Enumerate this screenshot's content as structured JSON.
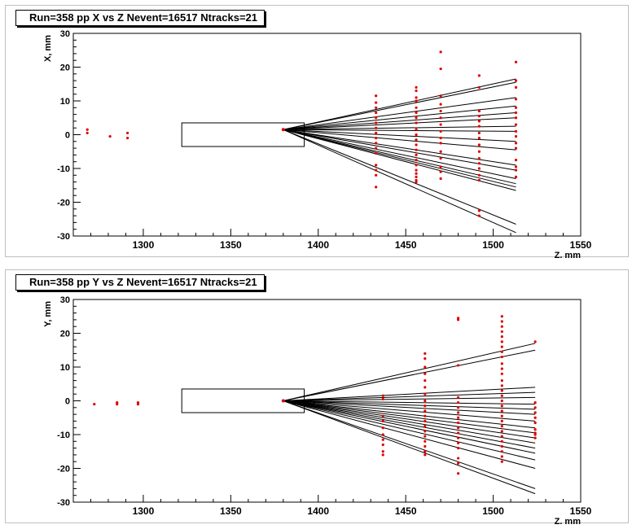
{
  "panels": [
    {
      "title": "Run=358 pp X vs Z Nevent=16517 Ntracks=21",
      "xlabel": "Z, mm",
      "ylabel": "X, mm"
    },
    {
      "title": "Run=358 pp Y vs Z Nevent=16517 Ntracks=21",
      "xlabel": "Z, mm",
      "ylabel": "Y, mm"
    }
  ],
  "colors": {
    "hits": "#e00000",
    "tracks": "#000000",
    "frame": "#000000"
  },
  "chart_data": [
    {
      "type": "scatter",
      "title": "Run=358 pp X vs Z Nevent=16517 Ntracks=21",
      "xlabel": "Z, mm",
      "ylabel": "X, mm",
      "xlim": [
        1260,
        1550
      ],
      "ylim": [
        -30,
        30
      ],
      "x_ticks": [
        1300,
        1350,
        1400,
        1450,
        1500,
        1550
      ],
      "y_ticks": [
        -30,
        -20,
        -10,
        0,
        10,
        20,
        30
      ],
      "grid": false,
      "box": {
        "z": [
          1322,
          1392
        ],
        "x": [
          -3.5,
          3.5
        ]
      },
      "vertex": {
        "z": 1380,
        "x": 1.5
      },
      "track_end_z": 1513,
      "track_end_values": [
        16.5,
        15.5,
        11,
        8.5,
        6.5,
        5,
        2.5,
        1,
        -2,
        -4.5,
        -9,
        -10.5,
        -13,
        -14.5,
        -15.5,
        -16.5,
        -26.5,
        -29
      ],
      "hit_planes_z": [
        1433,
        1456,
        1470,
        1492,
        1513
      ],
      "hits": [
        [
          1268,
          1.5
        ],
        [
          1268,
          0.5
        ],
        [
          1281,
          -0.5
        ],
        [
          1291,
          0.5
        ],
        [
          1291,
          -1
        ],
        [
          1433,
          11.5
        ],
        [
          1433,
          9.5
        ],
        [
          1433,
          8
        ],
        [
          1433,
          6.5
        ],
        [
          1433,
          5
        ],
        [
          1433,
          3.5
        ],
        [
          1433,
          2
        ],
        [
          1433,
          0.5
        ],
        [
          1433,
          -1
        ],
        [
          1433,
          -2.5
        ],
        [
          1433,
          -4
        ],
        [
          1433,
          -5.5
        ],
        [
          1433,
          -9
        ],
        [
          1433,
          -10.5
        ],
        [
          1433,
          -12
        ],
        [
          1433,
          -15.5
        ],
        [
          1456,
          14
        ],
        [
          1456,
          13
        ],
        [
          1456,
          11
        ],
        [
          1456,
          10
        ],
        [
          1456,
          8
        ],
        [
          1456,
          6.5
        ],
        [
          1456,
          5
        ],
        [
          1456,
          3.5
        ],
        [
          1456,
          1.5
        ],
        [
          1456,
          0
        ],
        [
          1456,
          -1.5
        ],
        [
          1456,
          -3
        ],
        [
          1456,
          -4.5
        ],
        [
          1456,
          -6
        ],
        [
          1456,
          -7.5
        ],
        [
          1456,
          -9
        ],
        [
          1456,
          -10.5
        ],
        [
          1456,
          -11.5
        ],
        [
          1456,
          -12.5
        ],
        [
          1456,
          -13.5
        ],
        [
          1456,
          -14
        ],
        [
          1470,
          24.5
        ],
        [
          1470,
          19.5
        ],
        [
          1470,
          11.5
        ],
        [
          1470,
          9
        ],
        [
          1470,
          7
        ],
        [
          1470,
          5
        ],
        [
          1470,
          3
        ],
        [
          1470,
          1
        ],
        [
          1470,
          -1
        ],
        [
          1470,
          -2.5
        ],
        [
          1470,
          -5
        ],
        [
          1470,
          -7
        ],
        [
          1470,
          -9.5
        ],
        [
          1470,
          -11
        ],
        [
          1470,
          -13
        ],
        [
          1492,
          17.5
        ],
        [
          1492,
          14
        ],
        [
          1492,
          7
        ],
        [
          1492,
          5.5
        ],
        [
          1492,
          4
        ],
        [
          1492,
          2.5
        ],
        [
          1492,
          0.5
        ],
        [
          1492,
          -1
        ],
        [
          1492,
          -3
        ],
        [
          1492,
          -5
        ],
        [
          1492,
          -7
        ],
        [
          1492,
          -8.5
        ],
        [
          1492,
          -10
        ],
        [
          1492,
          -12
        ],
        [
          1492,
          -13.5
        ],
        [
          1492,
          -22.5
        ],
        [
          1492,
          -24
        ],
        [
          1513,
          21.5
        ],
        [
          1513,
          16
        ],
        [
          1513,
          14
        ],
        [
          1513,
          10.5
        ],
        [
          1513,
          8
        ],
        [
          1513,
          6.5
        ],
        [
          1513,
          5
        ],
        [
          1513,
          3
        ],
        [
          1513,
          1
        ],
        [
          1513,
          -0.5
        ],
        [
          1513,
          -2.5
        ],
        [
          1513,
          -4
        ],
        [
          1513,
          -7.5
        ],
        [
          1513,
          -9.5
        ],
        [
          1513,
          -10.5
        ],
        [
          1513,
          -12.5
        ]
      ]
    },
    {
      "type": "scatter",
      "title": "Run=358 pp Y vs Z Nevent=16517 Ntracks=21",
      "xlabel": "Z, mm",
      "ylabel": "Y, mm",
      "xlim": [
        1260,
        1550
      ],
      "ylim": [
        -30,
        30
      ],
      "x_ticks": [
        1300,
        1350,
        1400,
        1450,
        1500,
        1550
      ],
      "y_ticks": [
        -30,
        -20,
        -10,
        0,
        10,
        20,
        30
      ],
      "grid": false,
      "box": {
        "z": [
          1322,
          1392
        ],
        "y": [
          -3.5,
          3.5
        ]
      },
      "vertex": {
        "z": 1380,
        "y": 0
      },
      "track_end_z": 1524,
      "track_end_values": [
        17,
        15,
        4,
        2.5,
        1,
        -1,
        -2.5,
        -4,
        -6,
        -8,
        -9.5,
        -11,
        -12.5,
        -14,
        -15.5,
        -17.5,
        -20,
        -26,
        -27.5
      ],
      "hit_planes_z": [
        1437,
        1461,
        1480,
        1505,
        1524
      ],
      "hits": [
        [
          1272,
          -1
        ],
        [
          1285,
          -0.5
        ],
        [
          1285,
          -1
        ],
        [
          1297,
          -1
        ],
        [
          1297,
          -0.5
        ],
        [
          1437,
          1.5
        ],
        [
          1437,
          0.5
        ],
        [
          1437,
          -4.5
        ],
        [
          1437,
          -6
        ],
        [
          1437,
          -8
        ],
        [
          1437,
          -10
        ],
        [
          1437,
          -11.5
        ],
        [
          1437,
          -13
        ],
        [
          1437,
          -15
        ],
        [
          1437,
          -16
        ],
        [
          1461,
          14
        ],
        [
          1461,
          12.5
        ],
        [
          1461,
          10
        ],
        [
          1461,
          8
        ],
        [
          1461,
          6
        ],
        [
          1461,
          4
        ],
        [
          1461,
          2
        ],
        [
          1461,
          0
        ],
        [
          1461,
          -1.5
        ],
        [
          1461,
          -3
        ],
        [
          1461,
          -4.5
        ],
        [
          1461,
          -6
        ],
        [
          1461,
          -7.5
        ],
        [
          1461,
          -9
        ],
        [
          1461,
          -10.5
        ],
        [
          1461,
          -12
        ],
        [
          1461,
          -13.5
        ],
        [
          1461,
          -15
        ],
        [
          1461,
          -16
        ],
        [
          1480,
          24.5
        ],
        [
          1480,
          24
        ],
        [
          1480,
          10.5
        ],
        [
          1480,
          1
        ],
        [
          1480,
          -0.5
        ],
        [
          1480,
          -2
        ],
        [
          1480,
          -3.5
        ],
        [
          1480,
          -5
        ],
        [
          1480,
          -6.5
        ],
        [
          1480,
          -8
        ],
        [
          1480,
          -9.5
        ],
        [
          1480,
          -11
        ],
        [
          1480,
          -12.5
        ],
        [
          1480,
          -14
        ],
        [
          1480,
          -17
        ],
        [
          1480,
          -18.5
        ],
        [
          1480,
          -21.5
        ],
        [
          1505,
          25
        ],
        [
          1505,
          23.5
        ],
        [
          1505,
          22
        ],
        [
          1505,
          20.5
        ],
        [
          1505,
          19
        ],
        [
          1505,
          17.5
        ],
        [
          1505,
          16
        ],
        [
          1505,
          14.5
        ],
        [
          1505,
          13
        ],
        [
          1505,
          11
        ],
        [
          1505,
          9.5
        ],
        [
          1505,
          8
        ],
        [
          1505,
          6
        ],
        [
          1505,
          4.5
        ],
        [
          1505,
          3
        ],
        [
          1505,
          1.5
        ],
        [
          1505,
          0
        ],
        [
          1505,
          -1.5
        ],
        [
          1505,
          -3
        ],
        [
          1505,
          -4.5
        ],
        [
          1505,
          -6
        ],
        [
          1505,
          -7.5
        ],
        [
          1505,
          -9
        ],
        [
          1505,
          -10.5
        ],
        [
          1505,
          -12
        ],
        [
          1505,
          -13.5
        ],
        [
          1505,
          -15
        ],
        [
          1505,
          -16.5
        ],
        [
          1505,
          -18
        ],
        [
          1524,
          17.5
        ],
        [
          1524,
          -0.5
        ],
        [
          1524,
          -2
        ],
        [
          1524,
          -3.5
        ],
        [
          1524,
          -5
        ],
        [
          1524,
          -6.5
        ],
        [
          1524,
          -8.5
        ],
        [
          1524,
          -9.5
        ],
        [
          1524,
          -10
        ],
        [
          1524,
          -11
        ]
      ]
    }
  ]
}
